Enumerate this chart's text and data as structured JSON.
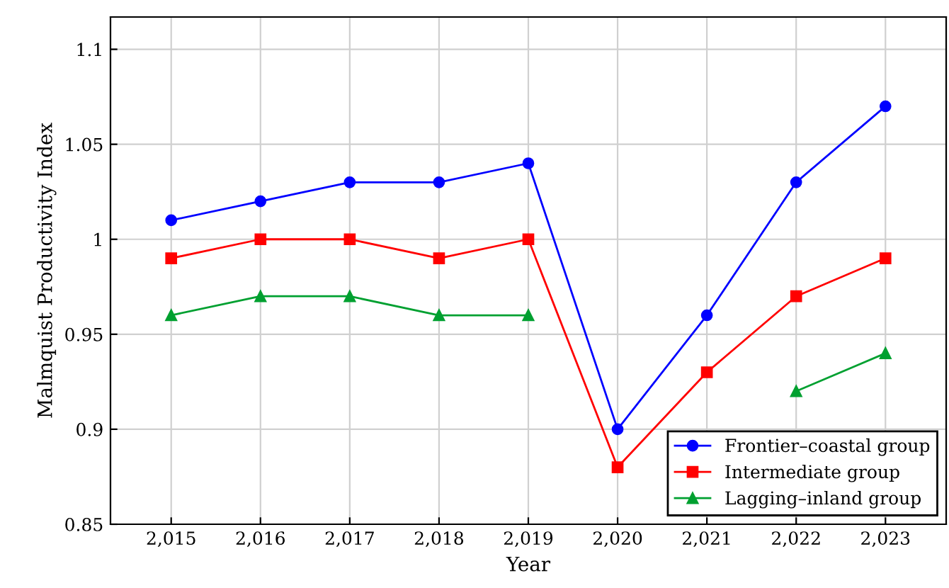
{
  "chart_data": {
    "type": "line",
    "xlabel": "Year",
    "ylabel": "Malmquist Productivity Index",
    "x": [
      2015,
      2016,
      2017,
      2018,
      2019,
      2020,
      2021,
      2022,
      2023
    ],
    "series": [
      {
        "name": "Frontier–coastal group",
        "color": "#0000ff",
        "marker": "circle",
        "values": [
          1.01,
          1.02,
          1.03,
          1.03,
          1.04,
          0.9,
          0.96,
          1.03,
          1.07
        ]
      },
      {
        "name": "Intermediate group",
        "color": "#ff0000",
        "marker": "square",
        "values": [
          0.99,
          1.0,
          1.0,
          0.99,
          1.0,
          0.88,
          0.93,
          0.97,
          0.99
        ]
      },
      {
        "name": "Lagging–inland group",
        "color": "#00a030",
        "marker": "triangle",
        "values": [
          0.96,
          0.97,
          0.97,
          0.96,
          0.96,
          null,
          null,
          0.92,
          0.94
        ]
      }
    ],
    "xlim": [
      2014.32,
      2023.68
    ],
    "xticks": [
      {
        "value": 2015,
        "label": "2,015"
      },
      {
        "value": 2016,
        "label": "2,016"
      },
      {
        "value": 2017,
        "label": "2,017"
      },
      {
        "value": 2018,
        "label": "2,018"
      },
      {
        "value": 2019,
        "label": "2,019"
      },
      {
        "value": 2020,
        "label": "2,020"
      },
      {
        "value": 2021,
        "label": "2,021"
      },
      {
        "value": 2022,
        "label": "2,022"
      },
      {
        "value": 2023,
        "label": "2,023"
      }
    ],
    "ylim": [
      0.85,
      1.117
    ],
    "yticks": [
      0.85,
      0.9,
      0.95,
      {
        "value": 1.0,
        "label": "1"
      },
      1.05,
      1.1
    ],
    "grid": true,
    "legend": "bottom right",
    "line_style": "solid"
  }
}
